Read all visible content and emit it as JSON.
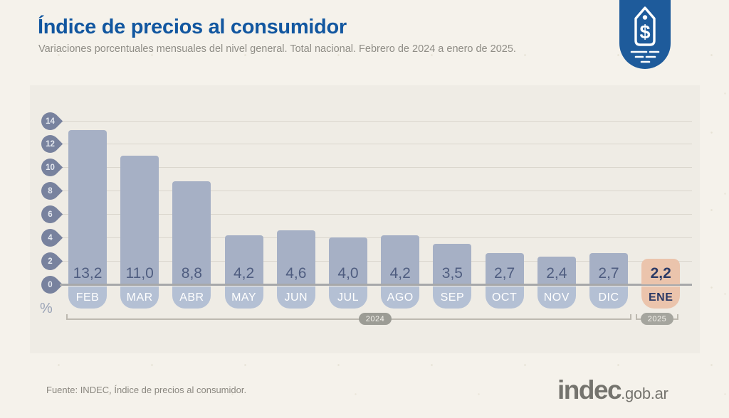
{
  "header": {
    "title": "Índice de precios al consumidor",
    "subtitle": "Variaciones porcentuales mensuales del nivel general. Total nacional. Febrero de 2024 a enero de 2025.",
    "badge_color": "#1e5b9b"
  },
  "chart_data": {
    "type": "bar",
    "title": "Índice de precios al consumidor",
    "subtitle": "Variaciones porcentuales mensuales del nivel general. Total nacional. Febrero de 2024 a enero de 2025.",
    "xlabel": "",
    "ylabel": "%",
    "ylim": [
      0,
      14
    ],
    "yticks": [
      14,
      12,
      10,
      8,
      6,
      4,
      2,
      0
    ],
    "grid": true,
    "legend": "none",
    "categories": [
      "FEB",
      "MAR",
      "ABR",
      "MAY",
      "JUN",
      "JUL",
      "AGO",
      "SEP",
      "OCT",
      "NOV",
      "DIC",
      "ENE"
    ],
    "values": [
      13.2,
      11.0,
      8.8,
      4.2,
      4.6,
      4.0,
      4.2,
      3.5,
      2.7,
      2.4,
      2.7,
      2.2
    ],
    "value_labels": [
      "13,2",
      "11,0",
      "8,8",
      "4,2",
      "4,6",
      "4,0",
      "4,2",
      "3,5",
      "2,7",
      "2,4",
      "2,7",
      "2,2"
    ],
    "highlight_index": 11,
    "year_groups": [
      {
        "label": "2024",
        "months": [
          "FEB",
          "MAR",
          "ABR",
          "MAY",
          "JUN",
          "JUL",
          "AGO",
          "SEP",
          "OCT",
          "NOV",
          "DIC"
        ]
      },
      {
        "label": "2025",
        "months": [
          "ENE"
        ]
      }
    ],
    "colors": {
      "bar": "#a6b0c5",
      "bar_highlight": "#ebc4ac",
      "tab": "#b4c0d4",
      "tab_highlight": "#ebc4ac",
      "value_text": "#4f5d80",
      "value_text_highlight": "#2c3a66",
      "pin": "#78829e",
      "gridline": "#dad6cd",
      "axis_line": "#a7a8aa"
    }
  },
  "footer": {
    "source": "Fuente: INDEC, Índice de precios al consumidor.",
    "logo_main": "indec",
    "logo_suffix": ".gob.ar"
  }
}
